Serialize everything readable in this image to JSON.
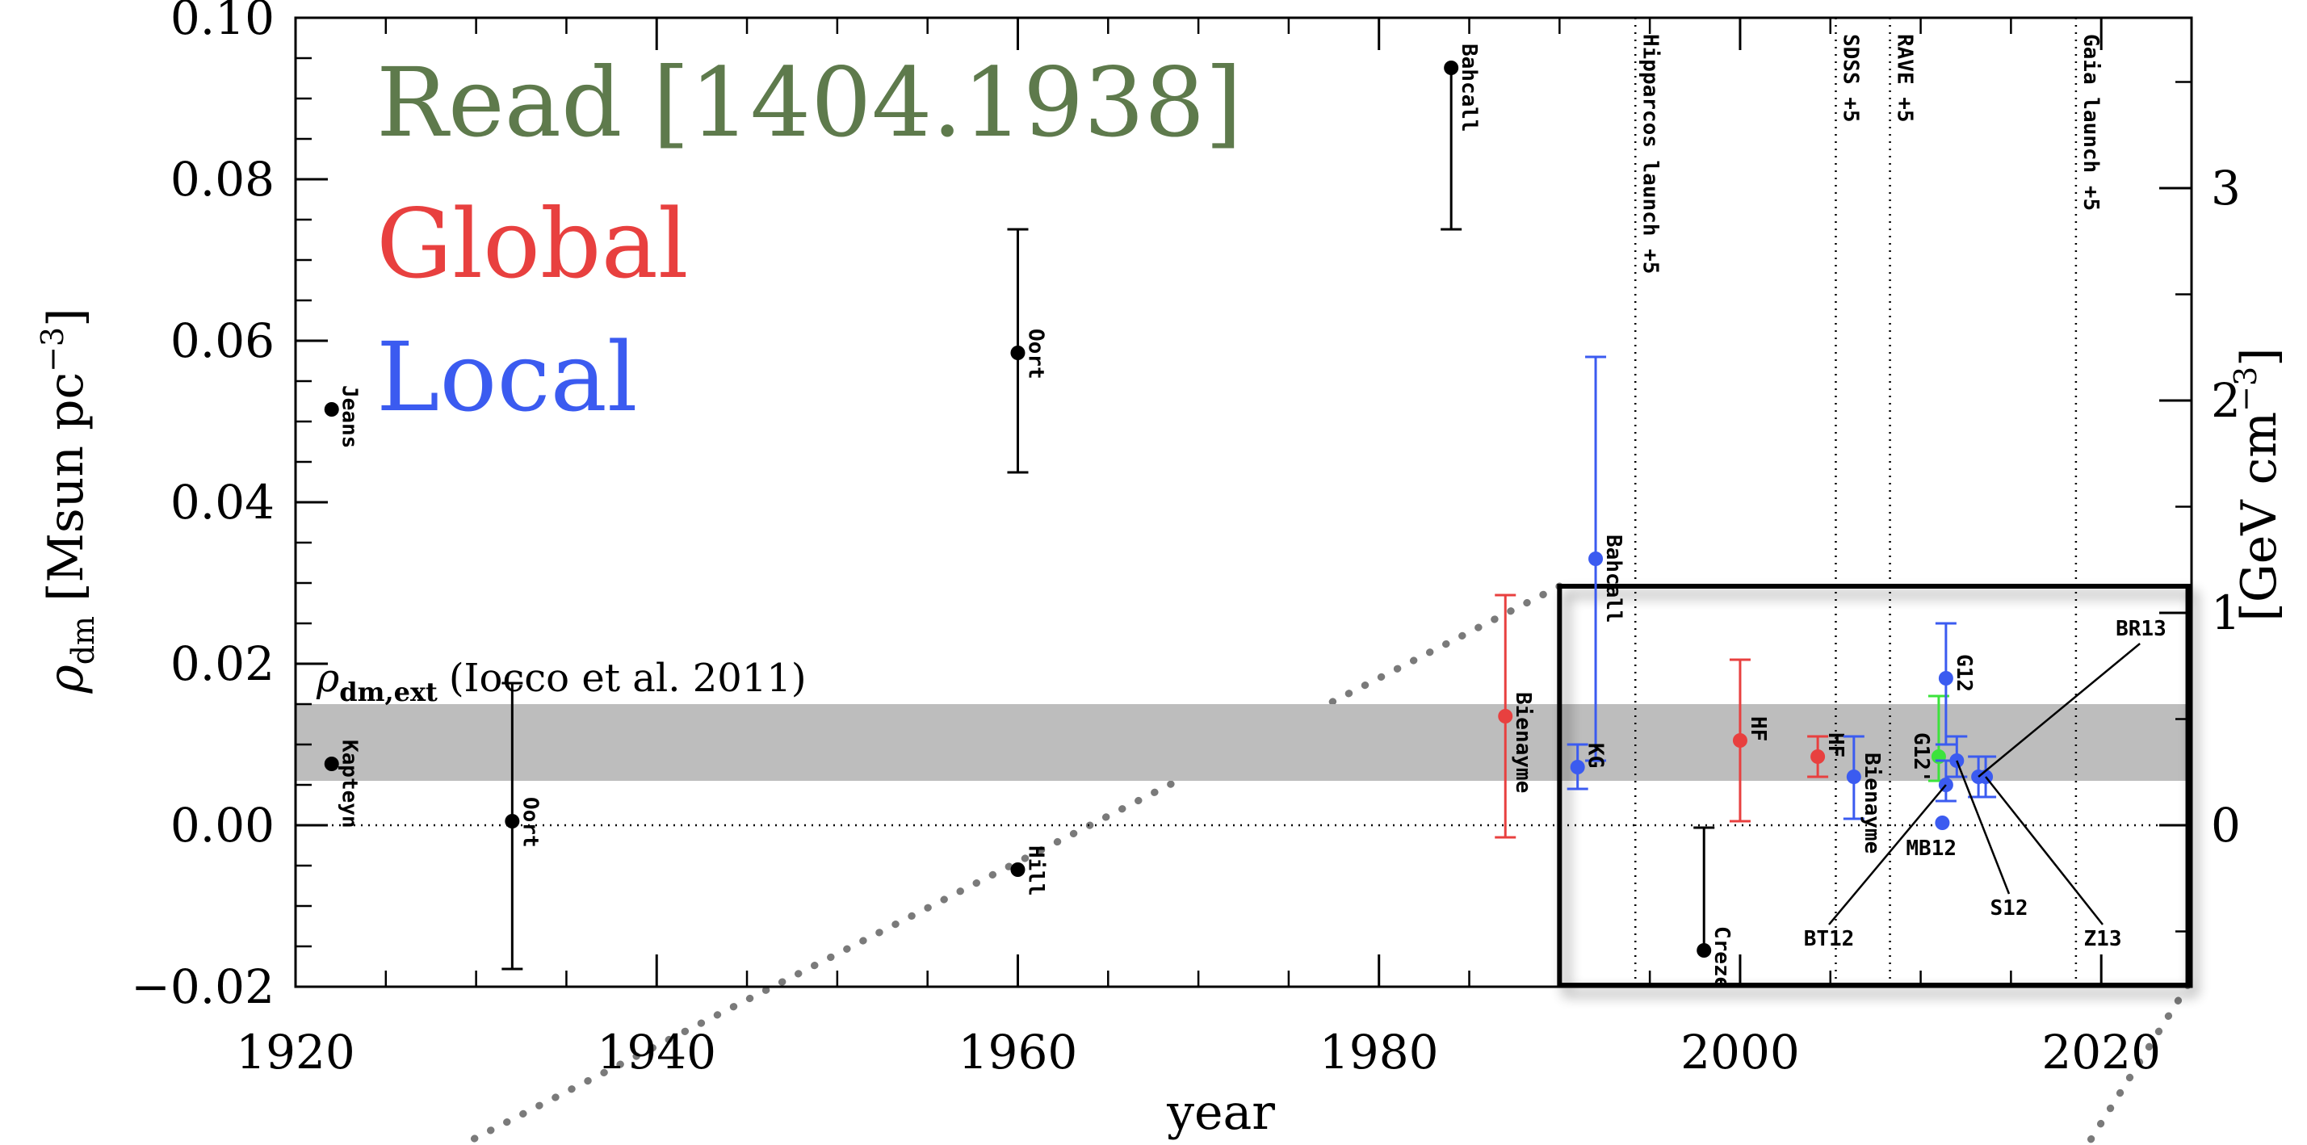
{
  "chart_data": {
    "type": "scatter",
    "title": "",
    "xlabel": "year",
    "ylabel": "ρ_dm [Msun pc^-3]",
    "ylabel_main": "ρ",
    "ylabel_sub": "dm",
    "ylabel_unit": "[Msun pc",
    "ylabel_exp": "−3",
    "ylabel_close": "]",
    "y2label": "[GeV cm^-3]",
    "y2label_unit": "[GeV cm",
    "y2label_exp": "−3",
    "y2label_close": "]",
    "xlim": [
      1920,
      2025
    ],
    "ylim": [
      -0.02,
      0.1
    ],
    "xticks": [
      1920,
      1940,
      1960,
      1980,
      2000,
      2020
    ],
    "xtick_labels": [
      "1920",
      "1940",
      "1960",
      "1980",
      "2000",
      "2020"
    ],
    "yticks": [
      -0.02,
      0.0,
      0.02,
      0.04,
      0.06,
      0.08,
      0.1
    ],
    "ytick_labels": [
      "−0.02",
      "0.00",
      "0.02",
      "0.04",
      "0.06",
      "0.08",
      "0.10"
    ],
    "y2ticks": [
      0,
      1,
      2,
      3
    ],
    "y2tick_labels": [
      "0",
      "1",
      "2",
      "3"
    ],
    "y2_conversion": 0.0263,
    "legend": [
      {
        "name": "Read [1404.1938]",
        "color": "#5e7a4c"
      },
      {
        "name": "Global",
        "color": "#e8403f"
      },
      {
        "name": "Local",
        "color": "#3b5bf0"
      }
    ],
    "legend_position": "top-left",
    "band": {
      "ymin": 0.0055,
      "ymax": 0.015,
      "color": "#bdbdbd",
      "label_main": "ρ",
      "label_sub": "dm,ext",
      "label_rest": "(Iocco et al. 2011)"
    },
    "zero_line": true,
    "vlines": [
      {
        "x": 1994.2,
        "label": "Hipparcos launch +5"
      },
      {
        "x": 2005.3,
        "label": "SDSS +5"
      },
      {
        "x": 2008.3,
        "label": "RAVE +5"
      },
      {
        "x": 2018.6,
        "label": "Gaia launch +5"
      }
    ],
    "zoom_box": {
      "x": [
        1990,
        2024.8
      ],
      "y": [
        -0.0198,
        0.0296
      ]
    },
    "points": [
      {
        "label": "Kapteyn",
        "x": 1922,
        "y": 0.0076,
        "yerr_lo": null,
        "yerr_hi": null,
        "color": "#000000",
        "label_dx": 22,
        "label_dy": 30,
        "label_pos": "right"
      },
      {
        "label": "Jeans",
        "x": 1922,
        "y": 0.0515,
        "yerr_lo": null,
        "yerr_hi": null,
        "color": "#000000",
        "label_dx": 22,
        "label_dy": 30,
        "label_pos": "right"
      },
      {
        "label": "Oort",
        "x": 1932,
        "y": 0.0005,
        "yerr_lo": -0.0178,
        "yerr_hi": 0.0176,
        "color": "#000000",
        "label_dx": 22,
        "label_dy": 30,
        "label_pos": "right"
      },
      {
        "label": "Hill",
        "x": 1960,
        "y": -0.0055,
        "yerr_lo": null,
        "yerr_hi": null,
        "color": "#000000",
        "label_dx": 22,
        "label_dy": 30,
        "label_pos": "right"
      },
      {
        "label": "Oort",
        "x": 1960,
        "y": 0.0585,
        "yerr_lo": 0.0437,
        "yerr_hi": 0.0738,
        "color": "#000000",
        "label_dx": 22,
        "label_dy": 30,
        "label_pos": "right"
      },
      {
        "label": "Bahcall",
        "x": 1984,
        "y": 0.0938,
        "yerr_lo": 0.0738,
        "yerr_hi": null,
        "color": "#000000",
        "label_dx": 22,
        "label_dy": 30,
        "label_pos": "right"
      },
      {
        "label": "Bienayme",
        "x": 1987,
        "y": 0.0135,
        "yerr_lo": -0.0015,
        "yerr_hi": 0.0285,
        "color": "#e8403f",
        "label_dx": 22,
        "label_dy": 30,
        "label_pos": "right"
      },
      {
        "label": "Bahcall",
        "x": 1992,
        "y": 0.033,
        "yerr_lo": 0.008,
        "yerr_hi": 0.058,
        "color": "#3b5bf0",
        "label_dx": 22,
        "label_dy": 30,
        "label_pos": "right"
      },
      {
        "label": "KG",
        "x": 1991,
        "y": 0.0072,
        "yerr_lo": 0.0045,
        "yerr_hi": 0.01,
        "color": "#3b5bf0",
        "label_dx": 22,
        "label_dy": 30,
        "label_pos": "right"
      },
      {
        "label": "Creze",
        "x": 1998,
        "y": -0.0155,
        "yerr_lo": null,
        "yerr_hi": -0.0003,
        "color": "#000000",
        "label_dx": 22,
        "label_dy": 30,
        "label_pos": "right"
      },
      {
        "label": "HF",
        "x": 2000,
        "y": 0.0105,
        "yerr_lo": 0.0005,
        "yerr_hi": 0.0205,
        "color": "#e8403f",
        "label_dx": 22,
        "label_dy": 30,
        "label_pos": "right"
      },
      {
        "label": "HF",
        "x": 2004.3,
        "y": 0.0085,
        "yerr_lo": 0.006,
        "yerr_hi": 0.011,
        "color": "#e8403f",
        "label_dx": 22,
        "label_dy": 30,
        "label_pos": "right"
      },
      {
        "label": "Bienayme",
        "x": 2006.3,
        "y": 0.006,
        "yerr_lo": 0.0008,
        "yerr_hi": 0.011,
        "color": "#3b5bf0",
        "label_dx": 22,
        "label_dy": 30,
        "label_pos": "right"
      },
      {
        "label": "G12'",
        "x": 2011.0,
        "y": 0.0085,
        "yerr_lo": 0.0055,
        "yerr_hi": 0.016,
        "color": "#3ce33c",
        "label_dx": 0,
        "label_dy": 30,
        "label_pos": "left"
      },
      {
        "label": "G12",
        "x": 2011.4,
        "y": 0.0182,
        "yerr_lo": 0.01,
        "yerr_hi": 0.025,
        "color": "#3b5bf0",
        "label_dx": 22,
        "label_dy": 30,
        "label_pos": "right"
      },
      {
        "label": "BT12",
        "x": 2011.4,
        "y": 0.005,
        "yerr_lo": 0.003,
        "yerr_hi": 0.008,
        "color": "#3b5bf0",
        "label_dx": 22,
        "label_dy": 30,
        "label_pos": "none"
      },
      {
        "label": "MB12",
        "x": 2011.2,
        "y": 0.0003,
        "yerr_lo": null,
        "yerr_hi": null,
        "color": "#3b5bf0",
        "label_dx": 22,
        "label_dy": 30,
        "label_pos": "none"
      },
      {
        "label": "S12",
        "x": 2012.0,
        "y": 0.008,
        "yerr_lo": 0.006,
        "yerr_hi": 0.011,
        "color": "#3b5bf0",
        "label_dx": 22,
        "label_dy": 30,
        "label_pos": "none"
      },
      {
        "label": "BR13",
        "x": 2013.2,
        "y": 0.006,
        "yerr_lo": 0.0035,
        "yerr_hi": 0.0085,
        "color": "#3b5bf0",
        "label_dx": 22,
        "label_dy": 30,
        "label_pos": "none"
      },
      {
        "label": "Z13",
        "x": 2013.6,
        "y": 0.006,
        "yerr_lo": 0.0035,
        "yerr_hi": 0.0085,
        "color": "#3b5bf0",
        "label_dx": 22,
        "label_dy": 30,
        "label_pos": "none"
      }
    ],
    "annotations": [
      {
        "text": "BR13",
        "point_index": 18,
        "anchor": "top"
      },
      {
        "text": "MB12",
        "point_index": 16,
        "anchor": "below"
      },
      {
        "text": "S12",
        "point_index": 17,
        "anchor": "bottom"
      },
      {
        "text": "BT12",
        "point_index": 15,
        "anchor": "bottom"
      },
      {
        "text": "Z13",
        "point_index": 19,
        "anchor": "bottom"
      }
    ]
  }
}
